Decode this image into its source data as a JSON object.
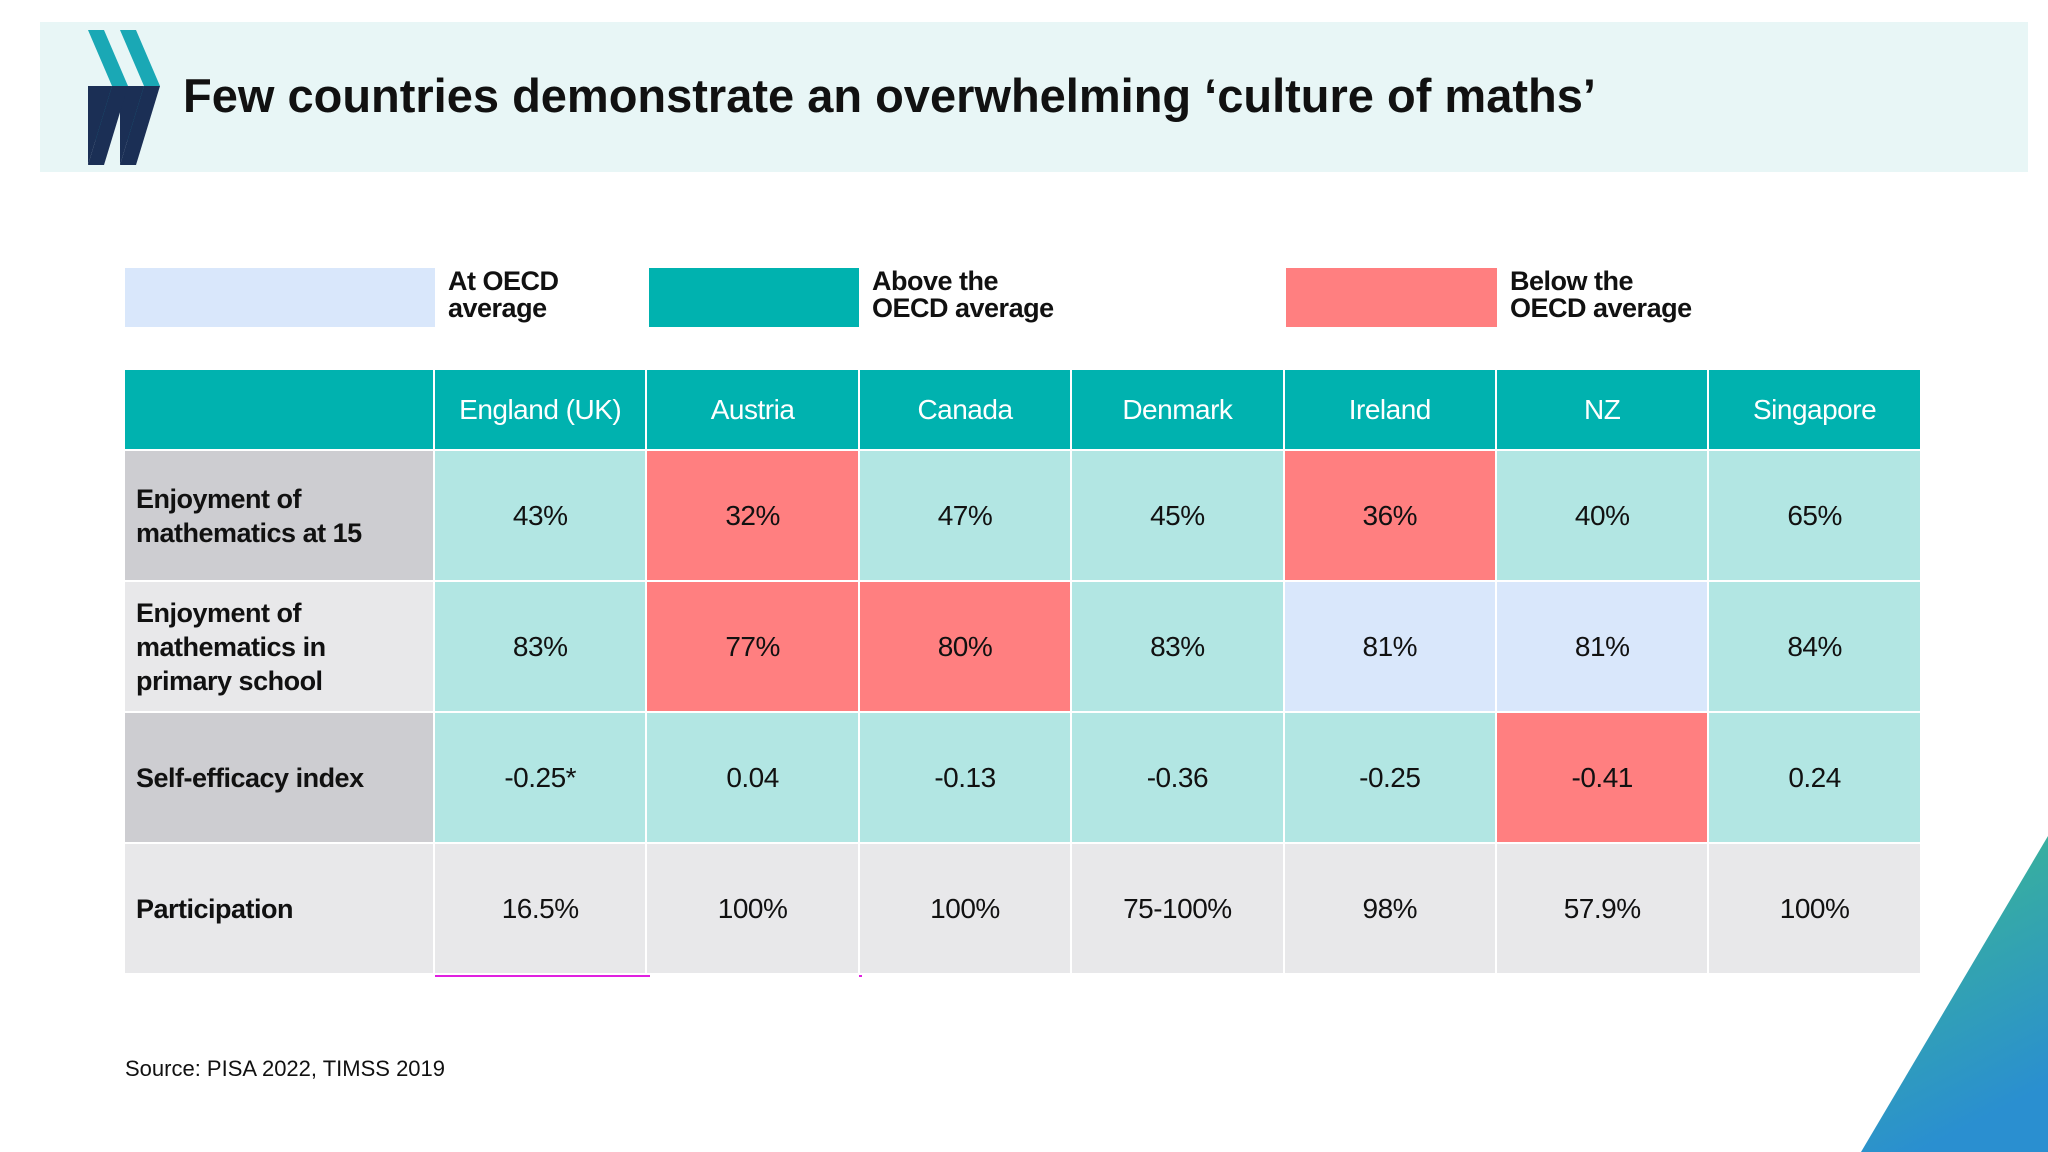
{
  "header": {
    "title": "Few countries demonstrate an overwhelming ‘culture of maths’"
  },
  "legend": [
    {
      "label": "At OECD average",
      "color": "#d9e7fb"
    },
    {
      "label": "Above the OECD average",
      "color": "#00b2af"
    },
    {
      "label": "Below the OECD average",
      "color": "#ff7f80"
    }
  ],
  "table": {
    "columns": [
      "England (UK)",
      "Austria",
      "Canada",
      "Denmark",
      "Ireland",
      "NZ",
      "Singapore"
    ],
    "rows": [
      {
        "label": "Enjoyment of mathematics at 15",
        "label_color": "#cdcdd1",
        "cells": [
          {
            "text": "43%",
            "color": "#b2e6e3"
          },
          {
            "text": "32%",
            "color": "#ff7f80"
          },
          {
            "text": "47%",
            "color": "#b2e6e3"
          },
          {
            "text": "45%",
            "color": "#b2e6e3"
          },
          {
            "text": "36%",
            "color": "#ff7f80"
          },
          {
            "text": "40%",
            "color": "#b2e6e3"
          },
          {
            "text": "65%",
            "color": "#b2e6e3"
          }
        ]
      },
      {
        "label": "Enjoyment of mathematics in primary school",
        "label_color": "#e8e8ea",
        "cells": [
          {
            "text": "83%",
            "color": "#b2e6e3"
          },
          {
            "text": "77%",
            "color": "#ff7f80"
          },
          {
            "text": "80%",
            "color": "#ff7f80"
          },
          {
            "text": "83%",
            "color": "#b2e6e3"
          },
          {
            "text": "81%",
            "color": "#d9e7fb"
          },
          {
            "text": "81%",
            "color": "#d9e7fb"
          },
          {
            "text": "84%",
            "color": "#b2e6e3"
          }
        ]
      },
      {
        "label": "Self-efficacy index",
        "label_color": "#cdcdd1",
        "cells": [
          {
            "text": "-0.25*",
            "color": "#b2e6e3"
          },
          {
            "text": "0.04",
            "color": "#b2e6e3"
          },
          {
            "text": "-0.13",
            "color": "#b2e6e3"
          },
          {
            "text": "-0.36",
            "color": "#b2e6e3"
          },
          {
            "text": "-0.25",
            "color": "#b2e6e3"
          },
          {
            "text": "-0.41",
            "color": "#ff7f80"
          },
          {
            "text": "0.24",
            "color": "#b2e6e3"
          }
        ]
      },
      {
        "label": "Participation",
        "label_color": "#e8e8ea",
        "cells": [
          {
            "text": "16.5%",
            "color": "#e8e8ea"
          },
          {
            "text": "100%",
            "color": "#e8e8ea"
          },
          {
            "text": "100%",
            "color": "#e8e8ea"
          },
          {
            "text": "75-100%",
            "color": "#e8e8ea"
          },
          {
            "text": "98%",
            "color": "#e8e8ea"
          },
          {
            "text": "57.9%",
            "color": "#e8e8ea"
          },
          {
            "text": "100%",
            "color": "#e8e8ea"
          }
        ]
      }
    ]
  },
  "source": "Source: PISA 2022, TIMSS 2019"
}
